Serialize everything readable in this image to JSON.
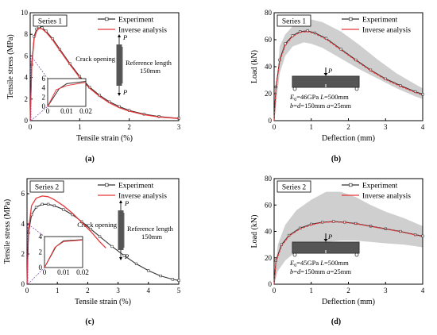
{
  "chart_data": [
    {
      "type": "line",
      "panel": "a",
      "caption": "(a)",
      "series_box": "Series 1",
      "xlabel": "Tensile strain (%)",
      "ylabel": "Tensile stress (MPa)",
      "xlim": [
        0,
        3
      ],
      "ylim": [
        0,
        10
      ],
      "xticks": [
        "0",
        "1",
        "2",
        "3"
      ],
      "yticks": [
        "0",
        "2",
        "4",
        "6",
        "8",
        "10"
      ],
      "legend_position": "top-right",
      "series": [
        {
          "name": "Experiment",
          "color": "#333333",
          "marker": "square",
          "x": [
            0,
            0.03,
            0.08,
            0.13,
            0.18,
            0.24,
            0.32,
            0.45,
            0.6,
            0.8,
            1.0,
            1.2,
            1.4,
            1.6,
            1.8,
            2.0,
            2.3,
            2.6,
            3.0
          ],
          "y": [
            0,
            5.2,
            7.8,
            8.5,
            8.7,
            8.6,
            8.3,
            7.6,
            6.6,
            5.3,
            4.1,
            3.1,
            2.35,
            1.75,
            1.3,
            0.95,
            0.6,
            0.38,
            0.22
          ]
        },
        {
          "name": "Inverse analysis",
          "color": "#e8383b",
          "marker": "none",
          "x": [
            0,
            0.03,
            0.08,
            0.13,
            0.18,
            0.24,
            0.32,
            0.45,
            0.6,
            0.8,
            1.0,
            1.2,
            1.4,
            1.6,
            1.8,
            2.0,
            2.3,
            2.6,
            3.0
          ],
          "y": [
            0,
            5.0,
            7.6,
            8.3,
            8.55,
            8.5,
            8.2,
            7.5,
            6.5,
            5.2,
            4.0,
            3.0,
            2.25,
            1.65,
            1.2,
            0.88,
            0.55,
            0.34,
            0.2
          ]
        }
      ],
      "annotations": [
        "Crack opening",
        "Reference length",
        "150mm",
        "P",
        "P"
      ],
      "inset": {
        "xlim": [
          0,
          0.02
        ],
        "ylim": [
          0,
          6
        ],
        "xticks": [
          "0",
          "0.01",
          "0.02"
        ],
        "yticks": [
          "0",
          "2",
          "4",
          "6"
        ],
        "series": [
          {
            "name": "Experiment",
            "x": [
              0,
              0.006,
              0.01,
              0.02
            ],
            "y": [
              0,
              3.8,
              4.9,
              5.4
            ]
          },
          {
            "name": "Inverse analysis",
            "x": [
              0,
              0.0045,
              0.01,
              0.02
            ],
            "y": [
              0,
              3.6,
              4.5,
              5.2
            ]
          }
        ]
      }
    },
    {
      "type": "line",
      "panel": "b",
      "caption": "(b)",
      "series_box": "Series 1",
      "xlabel": "Deflection (mm)",
      "ylabel": "Load (kN)",
      "xlim": [
        0,
        4
      ],
      "ylim": [
        0,
        80
      ],
      "xticks": [
        "0",
        "1",
        "2",
        "3",
        "4"
      ],
      "yticks": [
        "0",
        "20",
        "40",
        "60",
        "80"
      ],
      "legend_position": "top-right",
      "series": [
        {
          "name": "Experiment",
          "color": "#333333",
          "marker": "square",
          "x": [
            0,
            0.05,
            0.15,
            0.3,
            0.5,
            0.7,
            0.9,
            1.1,
            1.4,
            1.8,
            2.2,
            2.6,
            3.0,
            3.4,
            3.8,
            4.0
          ],
          "y": [
            0,
            25,
            45,
            57,
            63,
            66,
            66.5,
            65,
            61,
            53,
            45,
            37.5,
            31,
            26,
            21.5,
            19.5
          ]
        },
        {
          "name": "Inverse analysis",
          "color": "#e8383b",
          "marker": "none",
          "x": [
            0,
            0.05,
            0.15,
            0.3,
            0.5,
            0.7,
            0.9,
            1.1,
            1.4,
            1.8,
            2.2,
            2.6,
            3.0,
            3.4,
            3.8,
            4.0
          ],
          "y": [
            0,
            24,
            44,
            56,
            62.5,
            65.5,
            66,
            64.5,
            60.5,
            52.5,
            44.5,
            37,
            30.5,
            25.5,
            21,
            19
          ]
        }
      ],
      "band": {
        "x": [
          0,
          0.15,
          0.3,
          0.5,
          0.8,
          1.0,
          1.3,
          1.8,
          2.3,
          2.8,
          3.3,
          3.8,
          4.0
        ],
        "upper": [
          0,
          55,
          64,
          70,
          74,
          75,
          73,
          66,
          56,
          45,
          35,
          27,
          24
        ],
        "lower": [
          0,
          35,
          48,
          55,
          58,
          57,
          54,
          46,
          38,
          31,
          24,
          18,
          16
        ]
      },
      "beam_labels": [
        "P",
        "E",
        "0",
        "=46GPa",
        "L",
        "=500mm",
        "b",
        "=",
        "d",
        "=150mm",
        "a",
        "=25mm"
      ]
    },
    {
      "type": "line",
      "panel": "c",
      "caption": "(c)",
      "series_box": "Series 2",
      "xlabel": "Tensile strain (%)",
      "ylabel": "Tensile stress (MPa)",
      "xlim": [
        0,
        5
      ],
      "ylim": [
        0,
        7
      ],
      "xticks": [
        "0",
        "1",
        "2",
        "3",
        "4",
        "5"
      ],
      "yticks": [
        "0",
        "2",
        "4",
        "6"
      ],
      "legend_position": "top-right",
      "series": [
        {
          "name": "Experiment",
          "color": "#333333",
          "marker": "square",
          "x": [
            0,
            0.05,
            0.15,
            0.3,
            0.5,
            0.7,
            0.9,
            1.2,
            1.5,
            1.8,
            2.1,
            2.4,
            2.8,
            3.2,
            3.6,
            4.0,
            4.4,
            4.8,
            5.0
          ],
          "y": [
            0,
            3.4,
            4.6,
            5.1,
            5.3,
            5.3,
            5.2,
            4.95,
            4.6,
            4.15,
            3.65,
            3.15,
            2.5,
            1.9,
            1.35,
            0.9,
            0.55,
            0.32,
            0.25
          ]
        },
        {
          "name": "Inverse analysis",
          "color": "#e8383b",
          "marker": "none",
          "x": [
            0,
            0.05,
            0.15,
            0.3,
            0.5,
            0.7,
            0.9,
            1.2,
            1.5,
            1.8,
            2.1,
            2.4,
            2.6
          ],
          "y": [
            0,
            3.6,
            5.2,
            5.7,
            5.85,
            5.8,
            5.6,
            5.2,
            4.7,
            4.1,
            3.5,
            2.8,
            2.4
          ]
        }
      ],
      "annotations": [
        "Crack opening",
        "Reference length",
        "150mm",
        "P",
        "P"
      ],
      "inset": {
        "xlim": [
          0,
          0.02
        ],
        "ylim": [
          0,
          4
        ],
        "xticks": [
          "0",
          "0.01",
          "0.02"
        ],
        "yticks": [
          "0",
          "2",
          "4"
        ],
        "series": [
          {
            "name": "Experiment",
            "x": [
              0,
              0.006,
              0.01,
              0.02
            ],
            "y": [
              0,
              2.7,
              3.45,
              3.6
            ]
          },
          {
            "name": "Inverse analysis",
            "x": [
              0,
              0.0055,
              0.01,
              0.02
            ],
            "y": [
              0,
              2.6,
              3.35,
              3.55
            ]
          }
        ]
      }
    },
    {
      "type": "line",
      "panel": "d",
      "caption": "(d)",
      "series_box": "Series 2",
      "xlabel": "Deflection (mm)",
      "ylabel": "Load (kN)",
      "xlim": [
        0,
        4
      ],
      "ylim": [
        0,
        80
      ],
      "xticks": [
        "0",
        "1",
        "2",
        "3",
        "4"
      ],
      "yticks": [
        "0",
        "20",
        "40",
        "60",
        "80"
      ],
      "legend_position": "top-right",
      "series": [
        {
          "name": "Experiment",
          "color": "#333333",
          "marker": "square",
          "x": [
            0,
            0.05,
            0.2,
            0.4,
            0.7,
            1.0,
            1.3,
            1.6,
            1.9,
            2.2,
            2.6,
            3.0,
            3.4,
            3.8,
            4.0
          ],
          "y": [
            0,
            18,
            30,
            37,
            42.5,
            45.5,
            47,
            47.5,
            47,
            46,
            44,
            42,
            40,
            37.5,
            36.5
          ]
        },
        {
          "name": "Inverse analysis",
          "color": "#e8383b",
          "marker": "none",
          "x": [
            0,
            0.05,
            0.2,
            0.4,
            0.7,
            1.0,
            1.3,
            1.6,
            1.9,
            2.2,
            2.6,
            3.0,
            3.4,
            3.8,
            4.0
          ],
          "y": [
            0,
            17,
            29,
            36.5,
            42,
            45,
            46.8,
            47.3,
            46.8,
            45.8,
            43.8,
            41.8,
            39.8,
            37.3,
            36.2
          ]
        }
      ],
      "band": {
        "x": [
          0,
          0.1,
          0.3,
          0.6,
          1.0,
          1.4,
          1.8,
          2.2,
          2.6,
          3.0,
          3.5,
          4.0
        ],
        "upper": [
          0,
          30,
          45,
          56,
          64,
          70,
          70,
          66,
          60,
          55,
          50,
          44
        ],
        "lower": [
          0,
          10,
          18,
          25,
          30,
          32,
          33,
          33,
          32,
          31,
          30,
          28
        ]
      },
      "beam_labels": [
        "P",
        "E",
        "0",
        "=45GPa",
        "L",
        "=500mm",
        "b",
        "=",
        "d",
        "=150mm",
        "a",
        "=25mm"
      ]
    }
  ]
}
